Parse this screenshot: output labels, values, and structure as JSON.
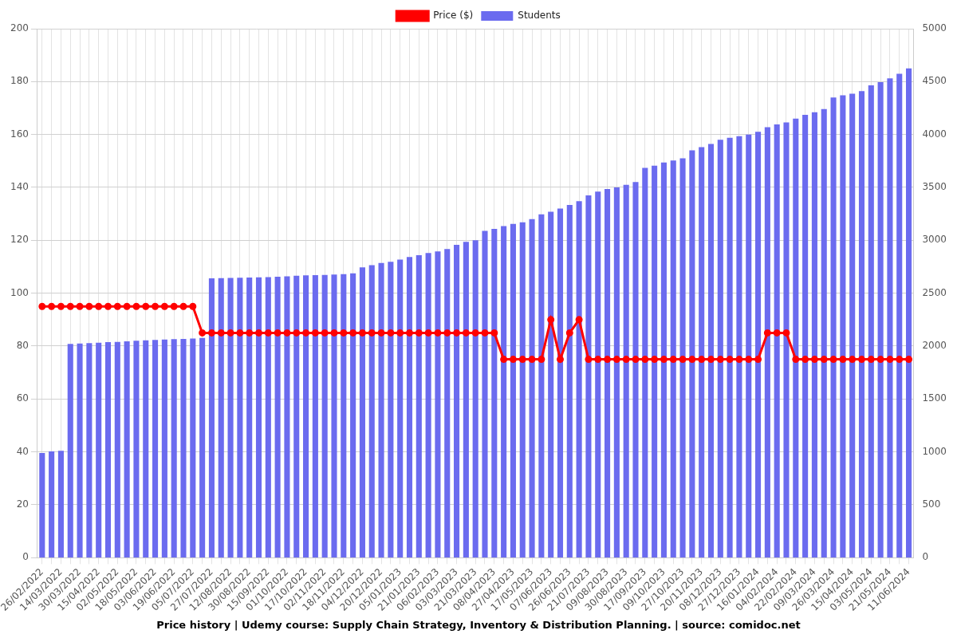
{
  "chart_data": {
    "type": "bar",
    "title": "Price history | Udemy course: Supply Chain Strategy, Inventory & Distribution Planning. | source: comidoc.net",
    "categories": [
      "26/02/2022",
      null,
      "14/03/2022",
      null,
      "30/03/2022",
      null,
      "15/04/2022",
      null,
      "02/05/2022",
      null,
      "18/05/2022",
      null,
      "03/06/2022",
      null,
      "19/06/2022",
      null,
      "05/07/2022",
      null,
      "27/07/2022",
      null,
      "12/08/2022",
      null,
      "30/08/2022",
      null,
      "15/09/2022",
      null,
      "01/10/2022",
      null,
      "17/10/2022",
      null,
      "02/11/2022",
      null,
      "18/11/2022",
      null,
      "04/12/2022",
      null,
      "20/12/2022",
      null,
      "05/01/2023",
      null,
      "21/01/2023",
      null,
      "06/02/2023",
      null,
      "03/03/2023",
      null,
      "21/03/2023",
      null,
      "08/04/2023",
      null,
      "27/04/2023",
      null,
      "17/05/2023",
      null,
      "07/06/2023",
      null,
      "26/06/2023",
      null,
      "21/07/2023",
      null,
      "09/08/2023",
      null,
      "30/08/2023",
      null,
      "17/09/2023",
      null,
      "09/10/2023",
      null,
      "27/10/2023",
      null,
      "20/11/2023",
      null,
      "08/12/2023",
      null,
      "27/12/2023",
      null,
      "16/01/2024",
      null,
      "04/02/2024",
      null,
      "22/02/2024",
      null,
      "09/03/2024",
      null,
      "26/03/2024",
      null,
      "15/04/2024",
      null,
      "03/05/2024",
      null,
      "21/05/2024",
      null,
      "11/06/2024"
    ],
    "series": [
      {
        "name": "Price ($)",
        "type": "line",
        "color": "#ff0000",
        "marker": "circle",
        "axis": "y",
        "values": [
          95,
          95,
          95,
          95,
          95,
          95,
          95,
          95,
          95,
          95,
          95,
          95,
          95,
          95,
          95,
          95,
          95,
          85,
          85,
          85,
          85,
          85,
          85,
          85,
          85,
          85,
          85,
          85,
          85,
          85,
          85,
          85,
          85,
          85,
          85,
          85,
          85,
          85,
          85,
          85,
          85,
          85,
          85,
          85,
          85,
          85,
          85,
          85,
          85,
          75,
          75,
          75,
          75,
          75,
          90,
          75,
          85,
          90,
          75,
          75,
          75,
          75,
          75,
          75,
          75,
          75,
          75,
          75,
          75,
          75,
          75,
          75,
          75,
          75,
          75,
          75,
          75,
          85,
          85,
          85,
          75,
          75,
          75,
          75,
          75,
          75,
          75,
          75,
          75,
          75,
          75,
          75,
          75
        ]
      },
      {
        "name": "Students",
        "type": "bar",
        "color": "#6b6bef",
        "axis": "y2",
        "values": [
          990,
          1005,
          1010,
          2020,
          2025,
          2028,
          2032,
          2038,
          2040,
          2045,
          2050,
          2055,
          2058,
          2062,
          2065,
          2068,
          2072,
          2078,
          2640,
          2642,
          2645,
          2647,
          2649,
          2650,
          2652,
          2655,
          2660,
          2665,
          2668,
          2670,
          2673,
          2676,
          2680,
          2688,
          2745,
          2765,
          2785,
          2797,
          2818,
          2843,
          2860,
          2880,
          2895,
          2918,
          2958,
          2985,
          3000,
          3090,
          3108,
          3135,
          3155,
          3170,
          3200,
          3245,
          3270,
          3300,
          3335,
          3370,
          3425,
          3460,
          3485,
          3500,
          3525,
          3550,
          3685,
          3705,
          3735,
          3755,
          3775,
          3850,
          3880,
          3910,
          3950,
          3970,
          3985,
          4000,
          4025,
          4070,
          4095,
          4115,
          4150,
          4185,
          4210,
          4240,
          4350,
          4370,
          4385,
          4410,
          4465,
          4495,
          4530,
          4575,
          4625
        ]
      }
    ],
    "ylim": [
      0,
      200
    ],
    "yticks": [
      0,
      20,
      40,
      60,
      80,
      100,
      120,
      140,
      160,
      180,
      200
    ],
    "y2lim": [
      0,
      5000
    ],
    "y2ticks": [
      0,
      500,
      1000,
      1500,
      2000,
      2500,
      3000,
      3500,
      4000,
      4500,
      5000
    ],
    "grid": true,
    "legend": "top"
  }
}
